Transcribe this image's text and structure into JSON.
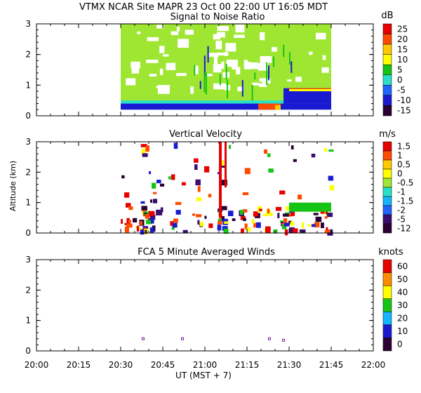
{
  "header": {
    "title": "VTMX  NCAR Site  MAPR 23 Oct 00  22:00 UT  16:05  MDT"
  },
  "x_axis": {
    "ticks": [
      "20:00",
      "20:15",
      "20:30",
      "20:45",
      "21:00",
      "21:15",
      "21:30",
      "21:45",
      "22:00"
    ],
    "label": "UT  (MST + 7)"
  },
  "y_axis": {
    "label": "Altitude (km)",
    "ticks": [
      "0",
      "1",
      "2",
      "3"
    ]
  },
  "colors": {
    "scale": [
      "#2b0033",
      "#3a0d6e",
      "#1a1ad0",
      "#1e64ff",
      "#14b4ff",
      "#28e0c8",
      "#16c416",
      "#9fe632",
      "#ffff00",
      "#ffc800",
      "#ff8c00",
      "#ff4a00",
      "#e60000"
    ]
  },
  "chart_data": [
    {
      "type": "heatmap",
      "title": "Signal to Noise Ratio",
      "unit": "dB",
      "ylim": [
        0,
        3
      ],
      "colorbar_labels": [
        "25",
        "20",
        "15",
        "10",
        "5",
        "0",
        "-5",
        "-10",
        "-15"
      ],
      "bottom_band_altitude_km": [
        0.2,
        0.4
      ],
      "strong_layer_altitude_km": [
        0.4,
        0.9
      ]
    },
    {
      "type": "heatmap",
      "title": "Vertical Velocity",
      "unit": "m/s",
      "ylim": [
        0,
        3
      ],
      "colorbar_labels": [
        "1.5",
        "1",
        "0.5",
        "0",
        "-0.5",
        "-1",
        "-1.5",
        "-2",
        "-5",
        "-12"
      ]
    },
    {
      "type": "scatter",
      "title": "FCA 5 Minute Averaged Winds",
      "unit": "knots",
      "ylim": [
        0,
        3
      ],
      "colorbar_labels": [
        "60",
        "50",
        "40",
        "30",
        "20",
        "10",
        "0"
      ],
      "points": [
        {
          "x": "20:38",
          "y": 0.4
        },
        {
          "x": "20:52",
          "y": 0.4
        },
        {
          "x": "21:23",
          "y": 0.4
        },
        {
          "x": "21:28",
          "y": 0.35
        }
      ]
    }
  ]
}
